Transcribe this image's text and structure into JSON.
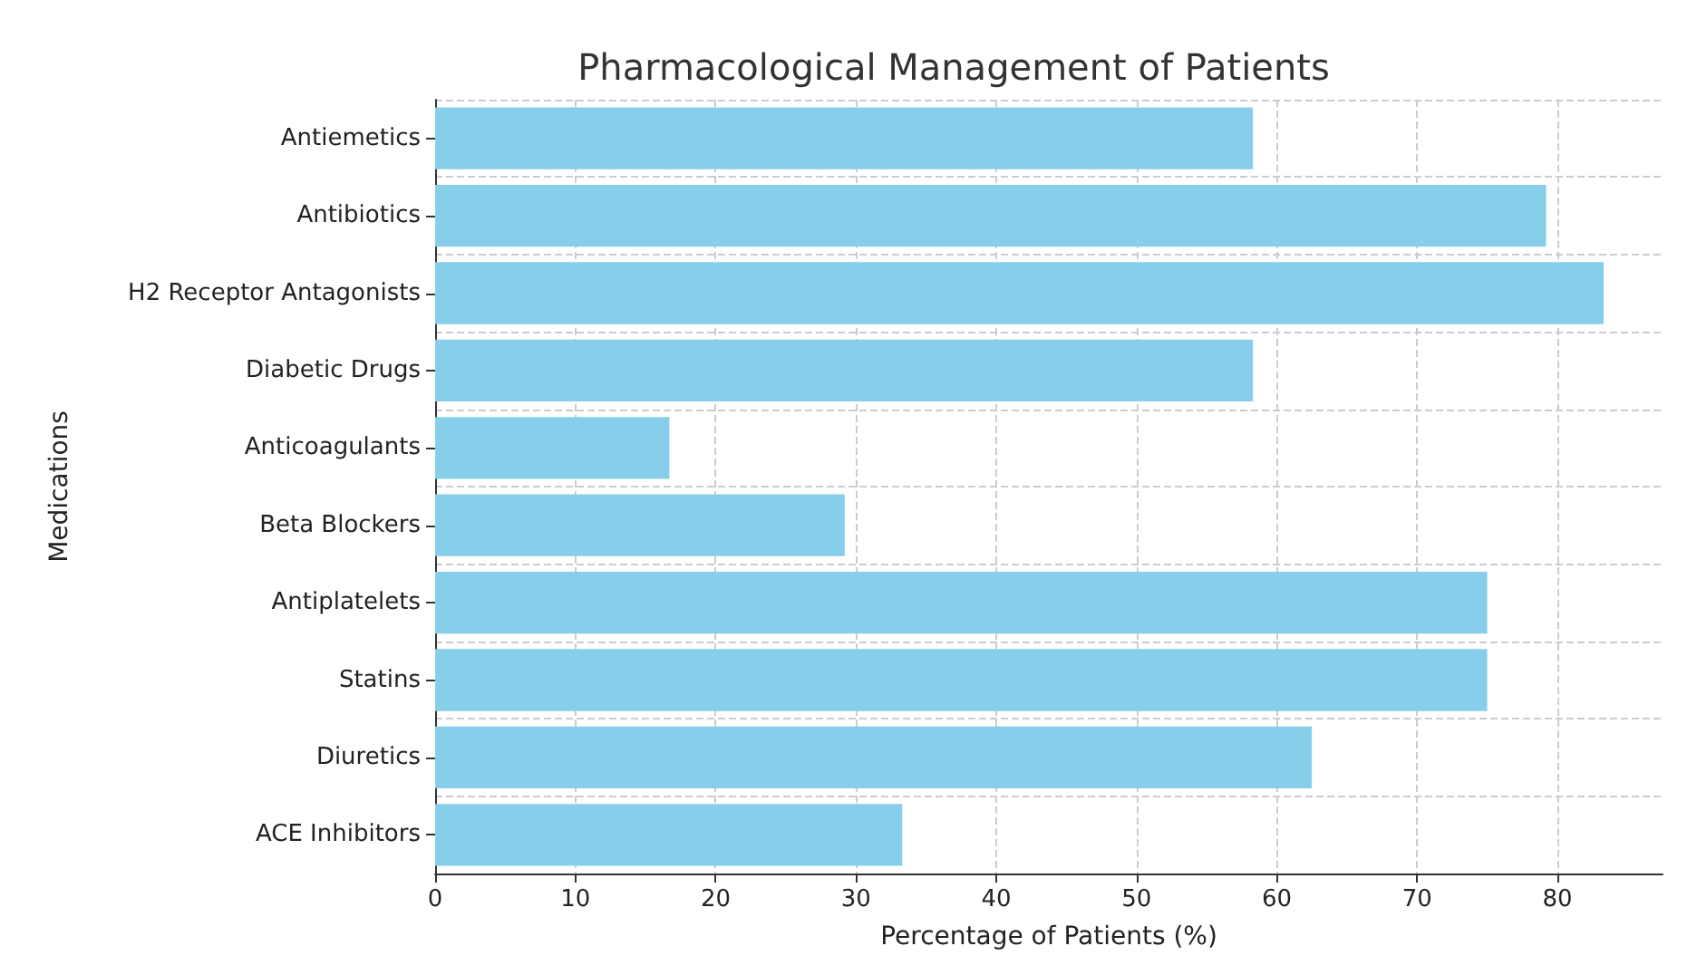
{
  "chart_data": {
    "type": "bar",
    "orientation": "horizontal",
    "title": "Pharmacological Management of Patients",
    "xlabel": "Percentage of Patients (%)",
    "ylabel": "Medications",
    "categories": [
      "Antiemetics",
      "Antibiotics",
      "H2 Receptor Antagonists",
      "Diabetic Drugs",
      "Anticoagulants",
      "Beta Blockers",
      "Antiplatelets",
      "Statins",
      "Diuretics",
      "ACE Inhibitors"
    ],
    "values": [
      58.3,
      79.2,
      83.3,
      58.3,
      16.7,
      29.2,
      75,
      75,
      62.5,
      33.3
    ],
    "color": "#87ceeb",
    "xlim": [
      0,
      87.5
    ],
    "xticks": [
      0,
      10,
      20,
      30,
      40,
      50,
      60,
      70,
      80
    ],
    "grid": true
  }
}
